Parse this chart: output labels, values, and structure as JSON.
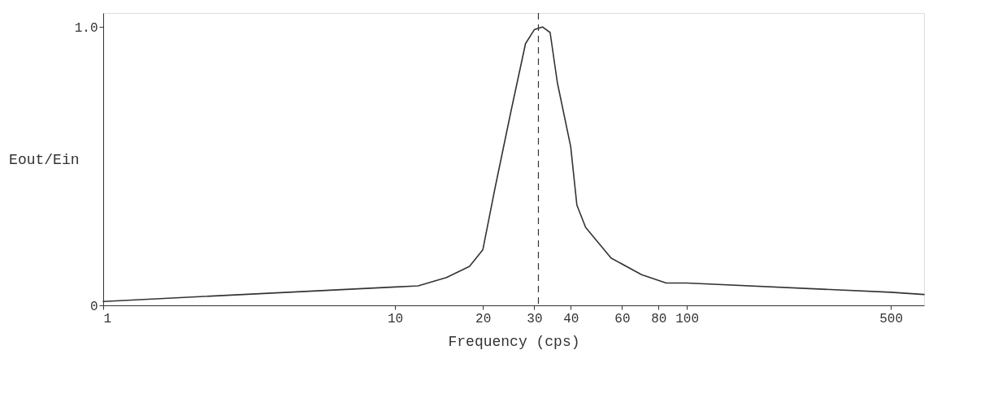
{
  "chart_data": {
    "type": "line",
    "xlabel": "Frequency (cps)",
    "ylabel": "Eout/Ein",
    "x": [
      1,
      10,
      12,
      15,
      18,
      20,
      22,
      25,
      28,
      30,
      32,
      34,
      36,
      40,
      42,
      45,
      55,
      70,
      85,
      100,
      500,
      650
    ],
    "series": [
      {
        "color": "#333333",
        "values": [
          0.014,
          0.066,
          0.07,
          0.1,
          0.14,
          0.2,
          0.42,
          0.7,
          0.94,
          0.99,
          1.0,
          0.98,
          0.8,
          0.57,
          0.36,
          0.28,
          0.17,
          0.11,
          0.08,
          0.08,
          0.047,
          0.039
        ]
      }
    ],
    "log": "x",
    "xlim": [
      1,
      650
    ],
    "ylim": [
      0,
      1.05
    ],
    "xticks": [
      1,
      10,
      20,
      30,
      40,
      60,
      80,
      100,
      500
    ],
    "yticks": [
      0,
      {
        "value": 1,
        "label": "1.0"
      }
    ],
    "ref_lines": [
      {
        "axis": "x",
        "value": 31,
        "label": null,
        "line_style": "dashed",
        "color": "#333333"
      }
    ],
    "grid": false,
    "marker": "none",
    "line_style": "solid"
  }
}
